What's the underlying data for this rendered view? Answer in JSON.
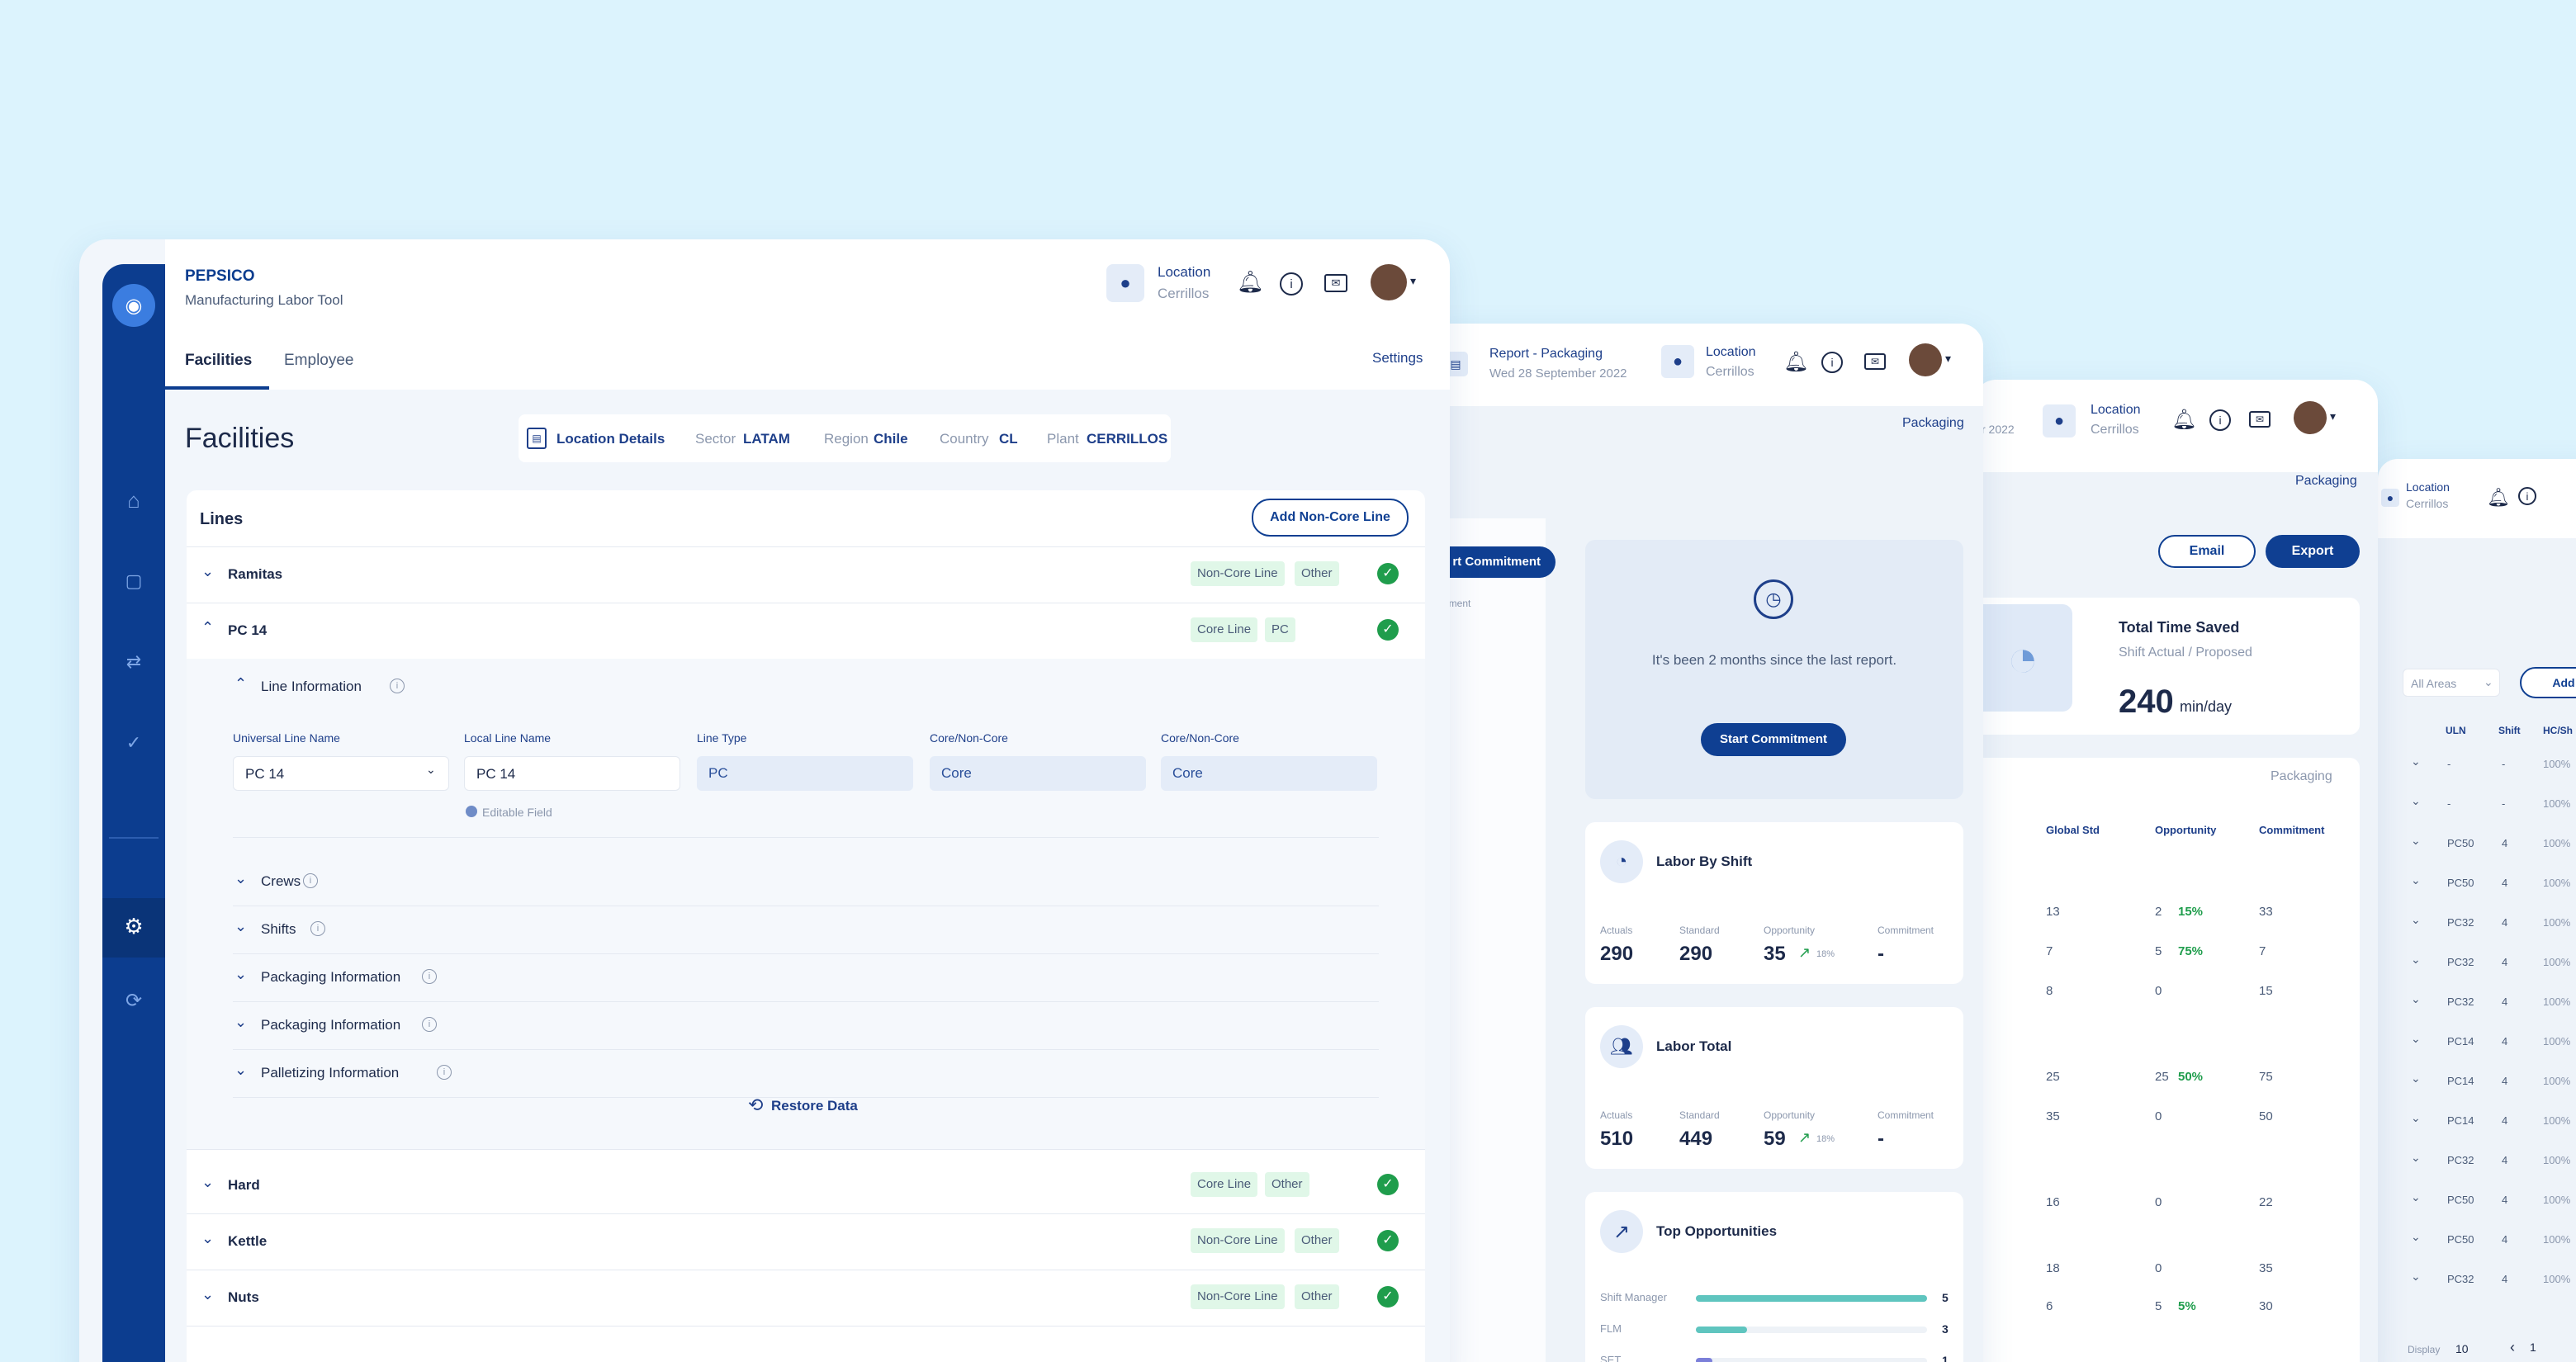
{
  "main": {
    "brand": "PEPSICO",
    "app_subtitle": "Manufacturing Labor Tool",
    "location_label": "Location",
    "location_value": "Cerrillos",
    "tabs": [
      "Facilities",
      "Employee"
    ],
    "settings": "Settings",
    "page_title": "Facilities",
    "location_details": "Location Details",
    "sector_label": "Sector",
    "sector_value": "LATAM",
    "region_label": "Region",
    "region_value": "Chile",
    "country_label": "Country",
    "country_value": "CL",
    "plant_label": "Plant",
    "plant_value": "CERRILLOS",
    "lines_title": "Lines",
    "add_button": "Add Non-Core Line",
    "lines": [
      {
        "name": "Ramitas",
        "tag1": "Non-Core Line",
        "tag2": "Other"
      },
      {
        "name": "PC 14",
        "tag1": "Core Line",
        "tag2": "PC"
      },
      {
        "name": "Hard",
        "tag1": "Core Line",
        "tag2": "Other"
      },
      {
        "name": "Kettle",
        "tag1": "Non-Core Line",
        "tag2": "Other"
      },
      {
        "name": "Nuts",
        "tag1": "Non-Core Line",
        "tag2": "Other"
      }
    ],
    "line_info": "Line Information",
    "field_labels": [
      "Universal Line Name",
      "Local Line Name",
      "Line Type",
      "Core/Non-Core",
      "Core/Non-Core"
    ],
    "field_values": [
      "PC 14",
      "PC 14",
      "PC",
      "Core",
      "Core"
    ],
    "editable_field": "Editable Field",
    "sections": [
      "Crews",
      "Shifts",
      "Packaging Information",
      "Packaging Information",
      "Palletizing Information"
    ],
    "restore": "Restore Data"
  },
  "report": {
    "title": "Report - Packaging",
    "date": "Wed 28 September 2022",
    "location_label": "Location",
    "location_value": "Cerrillos",
    "packaging": "Packaging",
    "commitment_btn": "rt Commitment",
    "commitment_sub": "ommitment",
    "reminder": "It's been 2 months since the last report.",
    "start_btn": "Start Commitment",
    "labor_shift": {
      "title": "Labor By Shift",
      "labels": [
        "Actuals",
        "Standard",
        "Opportunity",
        "Commitment"
      ],
      "values": [
        "290",
        "290",
        "35",
        "-"
      ],
      "pct": "18%"
    },
    "labor_total": {
      "title": "Labor Total",
      "labels": [
        "Actuals",
        "Standard",
        "Opportunity",
        "Commitment"
      ],
      "values": [
        "510",
        "449",
        "59",
        "-"
      ],
      "pct": "18%"
    },
    "top_opps": {
      "title": "Top Opportunities",
      "items": [
        {
          "label": "Shift Manager",
          "value": "5",
          "fill": 1.0
        },
        {
          "label": "FLM",
          "value": "3",
          "fill": 0.22
        },
        {
          "label": "SET",
          "value": "1",
          "fill": 0.07
        }
      ]
    }
  },
  "third": {
    "date_fragment": "r 2022",
    "location_label": "Location",
    "location_value": "Cerrillos",
    "packaging": "Packaging",
    "email": "Email",
    "export": "Export",
    "saved_title": "Total Time Saved",
    "saved_sub": "Shift Actual / Proposed",
    "saved_value": "240",
    "saved_unit": "min/day",
    "table_label": "Packaging",
    "headers": [
      "Global Std",
      "Opportunity",
      "Commitment"
    ],
    "rows": [
      {
        "std": "13",
        "opp": "2",
        "pct": "15%",
        "com": "33"
      },
      {
        "std": "7",
        "opp": "5",
        "pct": "75%",
        "com": "7"
      },
      {
        "std": "8",
        "opp": "0",
        "pct": "",
        "com": "15"
      },
      {
        "std": "25",
        "opp": "25",
        "pct": "50%",
        "com": "75"
      },
      {
        "std": "35",
        "opp": "0",
        "pct": "",
        "com": "50"
      },
      {
        "std": "16",
        "opp": "0",
        "pct": "",
        "com": "22"
      },
      {
        "std": "18",
        "opp": "0",
        "pct": "",
        "com": "35"
      },
      {
        "std": "6",
        "opp": "5",
        "pct": "5%",
        "com": "30"
      }
    ]
  },
  "fourth": {
    "location_label": "Location",
    "location_value": "Cerrillos",
    "filter": "All Areas",
    "add_btn": "Add C",
    "headers": [
      "ULN",
      "Shift",
      "HC/Sh"
    ],
    "rows": [
      {
        "uln": "-",
        "shift": "-",
        "pct": "100%"
      },
      {
        "uln": "-",
        "shift": "-",
        "pct": "100%"
      },
      {
        "uln": "PC50",
        "shift": "4",
        "pct": "100%"
      },
      {
        "uln": "PC50",
        "shift": "4",
        "pct": "100%"
      },
      {
        "uln": "PC32",
        "shift": "4",
        "pct": "100%"
      },
      {
        "uln": "PC32",
        "shift": "4",
        "pct": "100%"
      },
      {
        "uln": "PC32",
        "shift": "4",
        "pct": "100%"
      },
      {
        "uln": "PC14",
        "shift": "4",
        "pct": "100%"
      },
      {
        "uln": "PC14",
        "shift": "4",
        "pct": "100%"
      },
      {
        "uln": "PC14",
        "shift": "4",
        "pct": "100%"
      },
      {
        "uln": "PC32",
        "shift": "4",
        "pct": "100%"
      },
      {
        "uln": "PC50",
        "shift": "4",
        "pct": "100%"
      },
      {
        "uln": "PC50",
        "shift": "4",
        "pct": "100%"
      },
      {
        "uln": "PC32",
        "shift": "4",
        "pct": "100%"
      }
    ],
    "display_label": "Display",
    "display_value": "10",
    "page": "1"
  },
  "colors": {
    "navy": "#0f3f92",
    "green": "#1f9d4c",
    "teal": "#5fc5bf",
    "background": "#dcf3fd"
  }
}
